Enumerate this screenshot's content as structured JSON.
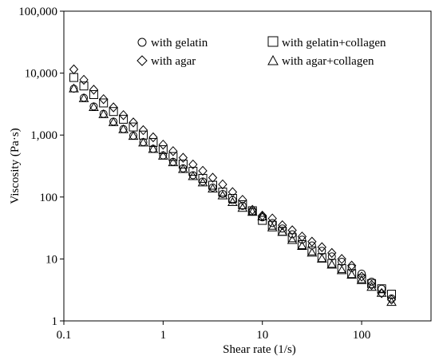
{
  "chart_data": {
    "type": "scatter",
    "title": "",
    "xlabel": "Shear rate (1/s)",
    "ylabel": "Viscosity (Pa·s)",
    "xscale": "log",
    "yscale": "log",
    "xlim": [
      0.1,
      500
    ],
    "ylim": [
      1,
      100000
    ],
    "x_ticks": [
      "0.1",
      "1",
      "10",
      "100"
    ],
    "y_ticks": [
      "1",
      "10",
      "100",
      "1,000",
      "10,000",
      "100,000"
    ],
    "grid": false,
    "legend_position": "top",
    "series": [
      {
        "name": "with gelatin",
        "marker": "circle",
        "x": [
          0.126,
          0.159,
          0.2,
          0.251,
          0.316,
          0.398,
          0.501,
          0.631,
          0.794,
          1.0,
          1.26,
          1.59,
          2.0,
          2.51,
          3.16,
          3.98,
          5.01,
          6.31,
          7.94,
          10.0,
          12.6,
          15.9,
          20.0,
          25.1,
          31.6,
          39.8,
          50.1,
          63.1,
          79.4,
          100,
          126,
          159,
          200
        ],
        "y": [
          5600,
          4000,
          2900,
          2200,
          1650,
          1250,
          980,
          770,
          600,
          470,
          370,
          290,
          225,
          178,
          142,
          112,
          89,
          72,
          58,
          47,
          38,
          31,
          25,
          20.5,
          16.5,
          13.5,
          11,
          9,
          7.2,
          5.8,
          4.3,
          3.3,
          2.3
        ]
      },
      {
        "name": "with gelatin+collagen",
        "marker": "square",
        "x": [
          0.126,
          0.159,
          0.2,
          0.251,
          0.316,
          0.398,
          0.501,
          0.631,
          0.794,
          1.0,
          1.26,
          1.59,
          2.0,
          2.51,
          3.16,
          3.98,
          5.01,
          6.31,
          7.94,
          10.0,
          12.6,
          15.9,
          20.0,
          25.1,
          31.6,
          39.8,
          50.1,
          63.1,
          79.4,
          100,
          126,
          159,
          200
        ],
        "y": [
          8500,
          6200,
          4500,
          3300,
          2400,
          1800,
          1350,
          1000,
          760,
          580,
          450,
          340,
          260,
          200,
          155,
          120,
          95,
          75,
          60,
          42,
          35,
          28,
          22,
          17,
          13.5,
          10.5,
          8.5,
          7,
          5.8,
          4.8,
          4,
          3.3,
          2.7
        ]
      },
      {
        "name": "with agar",
        "marker": "diamond",
        "x": [
          0.126,
          0.159,
          0.2,
          0.251,
          0.316,
          0.398,
          0.501,
          0.631,
          0.794,
          1.0,
          1.26,
          1.59,
          2.0,
          2.51,
          3.16,
          3.98,
          5.01,
          6.31,
          7.94,
          10.0,
          12.6,
          15.9,
          20.0,
          25.1,
          31.6,
          39.8,
          50.1,
          63.1,
          79.4,
          100,
          126,
          159,
          200
        ],
        "y": [
          11500,
          7800,
          5400,
          3800,
          2800,
          2100,
          1600,
          1200,
          920,
          700,
          550,
          430,
          335,
          265,
          205,
          160,
          120,
          90,
          62,
          50,
          45,
          35,
          29,
          23,
          19,
          15.5,
          12.5,
          10,
          7.8,
          5.2,
          3.8,
          2.8,
          2.2
        ]
      },
      {
        "name": "with agar+collagen",
        "marker": "triangle",
        "x": [
          0.126,
          0.159,
          0.2,
          0.251,
          0.316,
          0.398,
          0.501,
          0.631,
          0.794,
          1.0,
          1.26,
          1.59,
          2.0,
          2.51,
          3.16,
          3.98,
          5.01,
          6.31,
          7.94,
          10.0,
          12.6,
          15.9,
          20.0,
          25.1,
          31.6,
          39.8,
          50.1,
          63.1,
          79.4,
          100,
          126,
          159,
          200
        ],
        "y": [
          5600,
          3900,
          2800,
          2150,
          1600,
          1230,
          960,
          750,
          590,
          460,
          360,
          280,
          215,
          170,
          135,
          105,
          82,
          66,
          57,
          48,
          32,
          27,
          20,
          16,
          12.5,
          10,
          8,
          6.5,
          5.5,
          4.5,
          3.5,
          2.8,
          2.0
        ]
      }
    ]
  }
}
